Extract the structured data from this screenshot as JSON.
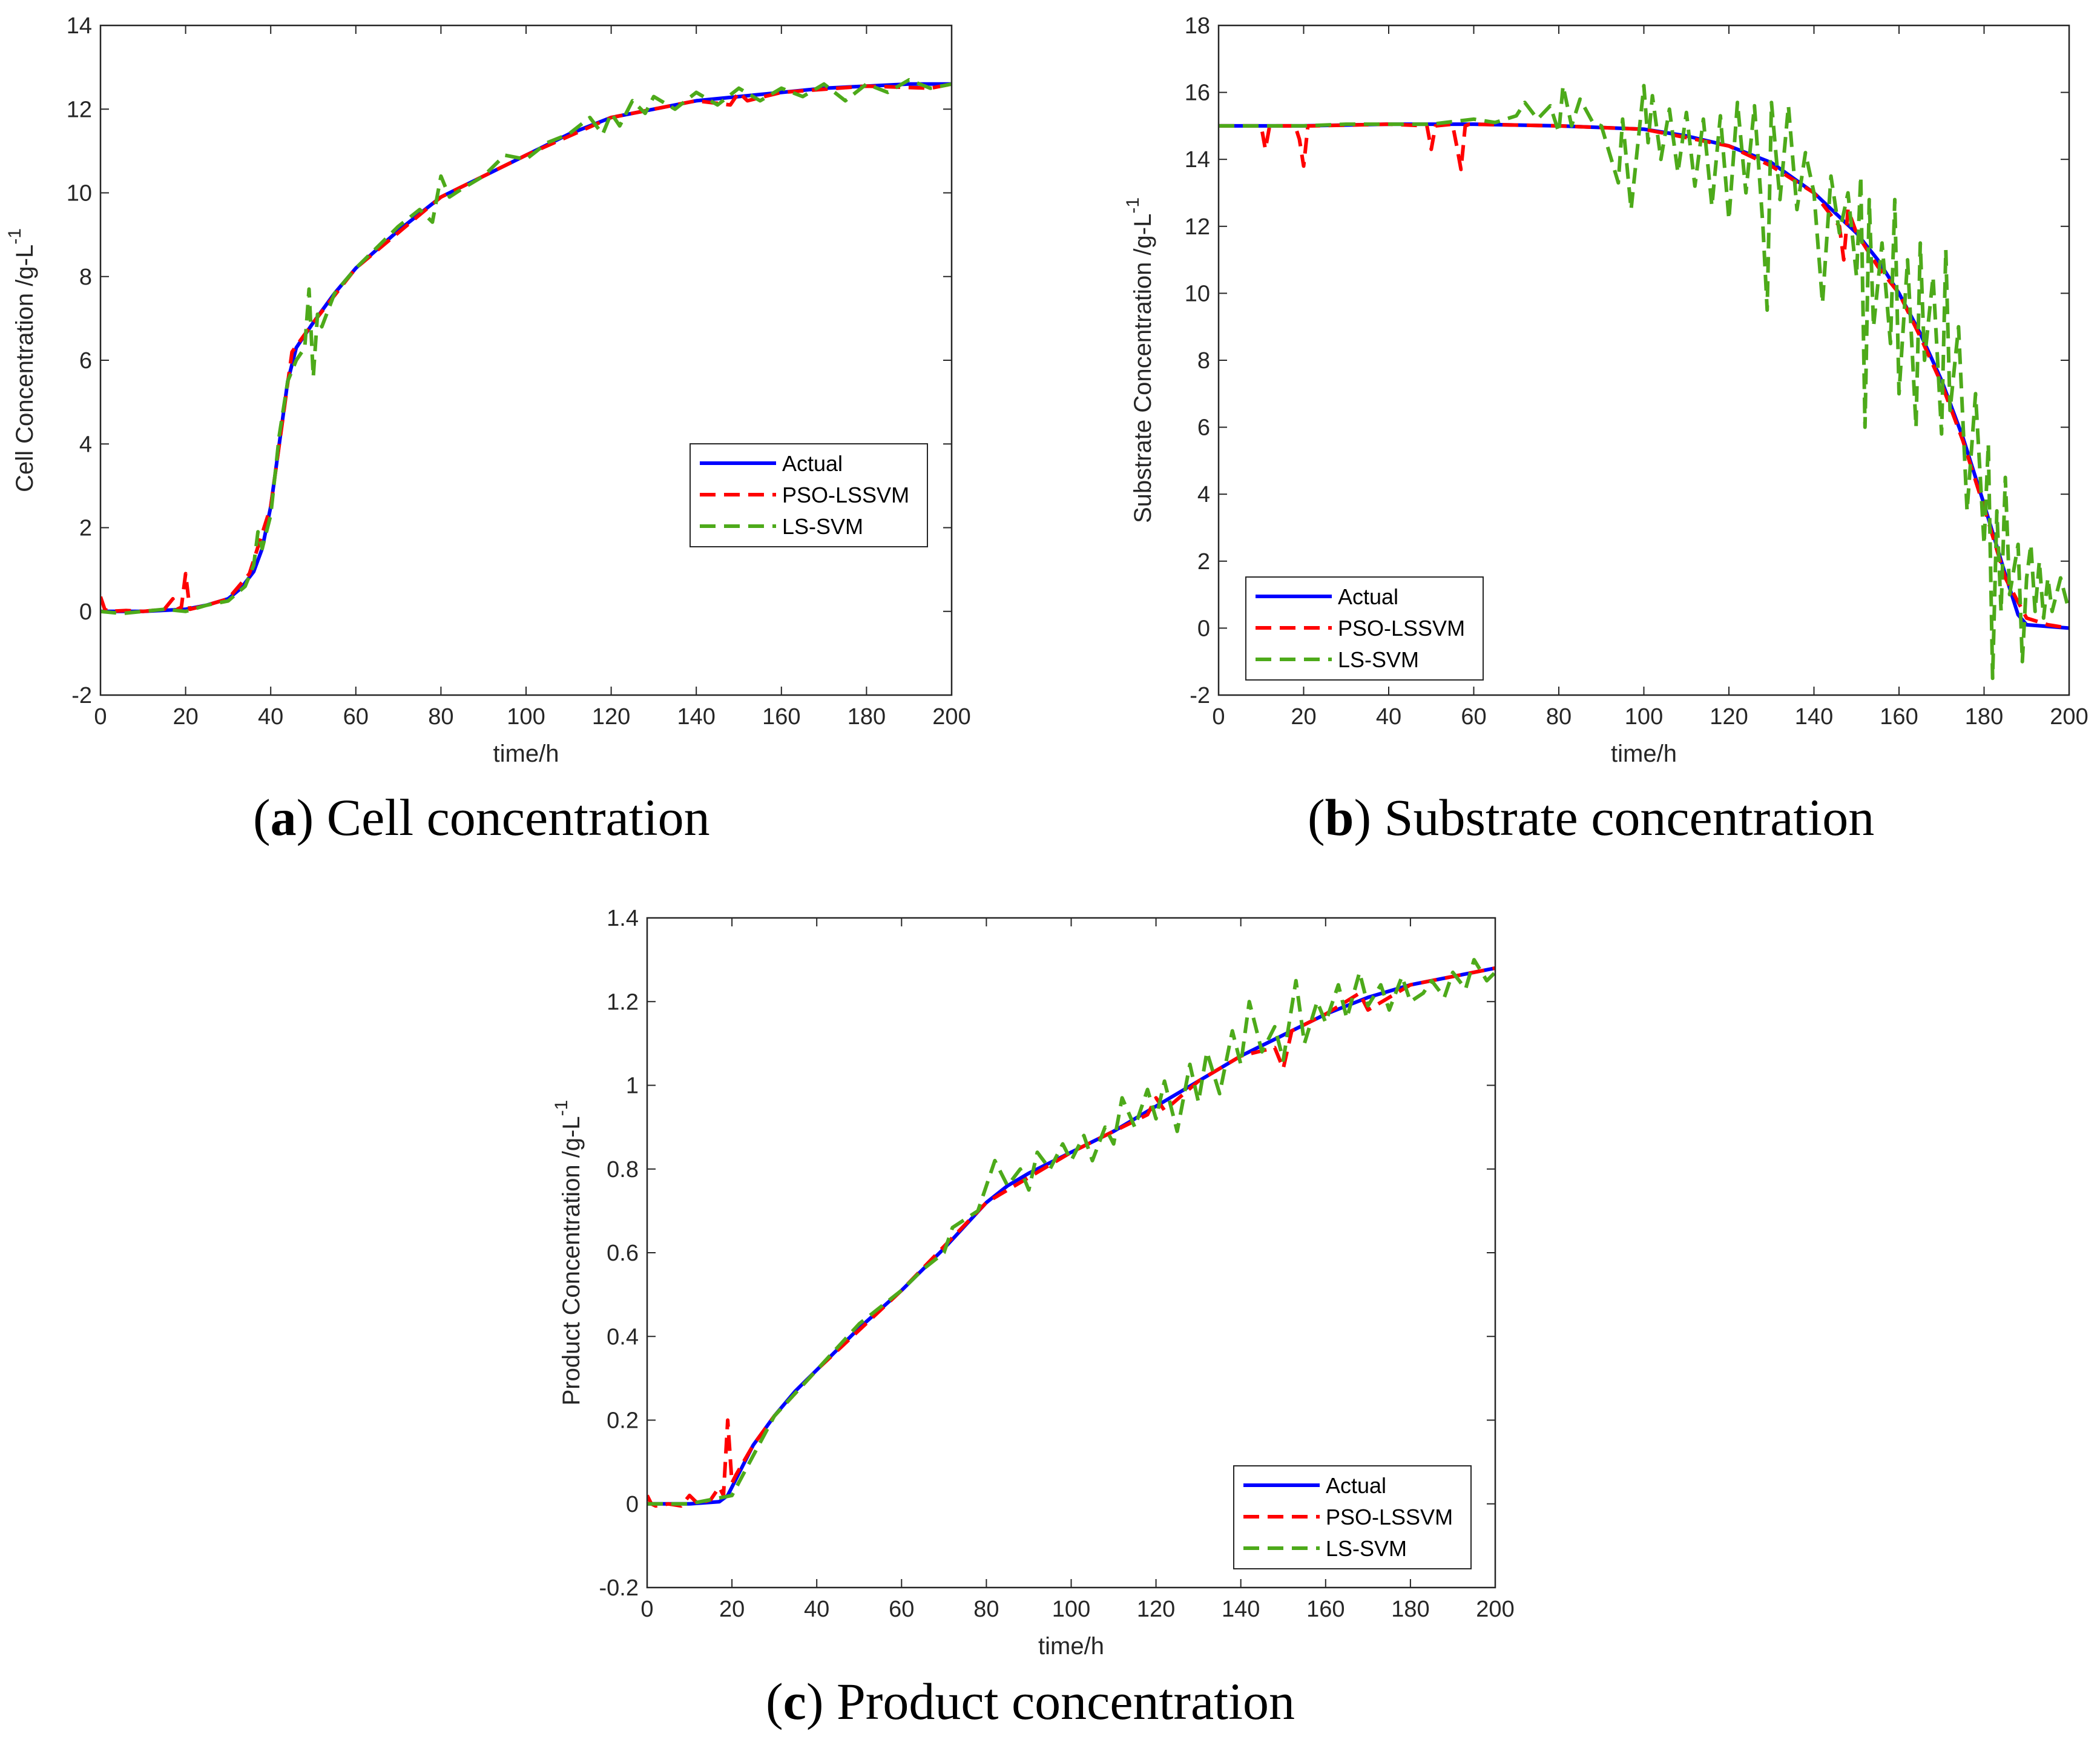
{
  "captions": [
    {
      "letter": "a",
      "text": "Cell concentration"
    },
    {
      "letter": "b",
      "text": "Substrate concentration"
    },
    {
      "letter": "c",
      "text": "Product concentration"
    }
  ],
  "colors": {
    "actual": "#0000ff",
    "pso": "#ff0000",
    "lssvm": "#4daa1a"
  },
  "chart_data": [
    {
      "type": "line",
      "xlabel": "time/h",
      "ylabel": "Cell Concentration /g-L",
      "ylabel_sup": "-1",
      "xlim": [
        0,
        200
      ],
      "ylim": [
        -2,
        14
      ],
      "xticks": [
        0,
        20,
        40,
        60,
        80,
        100,
        120,
        140,
        160,
        180,
        200
      ],
      "yticks": [
        -2,
        0,
        2,
        4,
        6,
        8,
        10,
        12,
        14
      ],
      "legend_position": "lower-right",
      "series": [
        {
          "name": "Actual",
          "x": [
            0,
            10,
            20,
            25,
            30,
            33,
            36,
            38,
            40,
            42,
            44,
            46,
            48,
            50,
            55,
            60,
            70,
            80,
            90,
            100,
            110,
            120,
            130,
            140,
            150,
            160,
            170,
            180,
            190,
            200
          ],
          "y": [
            0,
            0,
            0.05,
            0.15,
            0.3,
            0.55,
            0.95,
            1.5,
            2.5,
            4.0,
            5.5,
            6.3,
            6.6,
            6.9,
            7.6,
            8.2,
            9.1,
            9.9,
            10.4,
            10.9,
            11.4,
            11.8,
            12.0,
            12.2,
            12.3,
            12.4,
            12.5,
            12.55,
            12.6,
            12.6
          ]
        },
        {
          "name": "PSO-LSSVM",
          "x": [
            0,
            1,
            2,
            6,
            10,
            15,
            17,
            18,
            19,
            20,
            21,
            25,
            30,
            35,
            40,
            45,
            50,
            60,
            80,
            100,
            120,
            140,
            148,
            150,
            152,
            160,
            180,
            195,
            200
          ],
          "y": [
            0.35,
            0.05,
            0,
            0.02,
            0,
            0.05,
            0.3,
            0.05,
            0.1,
            0.9,
            0.05,
            0.15,
            0.3,
            0.9,
            2.5,
            6.2,
            6.9,
            8.2,
            9.9,
            10.9,
            11.8,
            12.2,
            12.1,
            12.4,
            12.2,
            12.4,
            12.55,
            12.5,
            12.6
          ]
        },
        {
          "name": "LS-SVM",
          "x": [
            0,
            5,
            10,
            15,
            20,
            25,
            30,
            34,
            36,
            37,
            38,
            40,
            42,
            44,
            46,
            48,
            49,
            50,
            51,
            52,
            55,
            60,
            65,
            70,
            75,
            78,
            80,
            82,
            85,
            90,
            95,
            100,
            105,
            110,
            115,
            118,
            120,
            122,
            125,
            128,
            130,
            135,
            140,
            145,
            150,
            155,
            160,
            165,
            170,
            175,
            180,
            185,
            190,
            195,
            200
          ],
          "y": [
            0,
            -0.05,
            0,
            0.05,
            0,
            0.15,
            0.25,
            0.6,
            1.1,
            1.9,
            1.5,
            2.3,
            4.2,
            5.5,
            6.0,
            6.3,
            7.7,
            5.6,
            7.1,
            6.8,
            7.6,
            8.2,
            8.7,
            9.2,
            9.6,
            9.3,
            10.4,
            9.9,
            10.1,
            10.4,
            10.9,
            10.8,
            11.2,
            11.4,
            11.8,
            11.4,
            11.9,
            11.6,
            12.2,
            11.9,
            12.3,
            12.0,
            12.4,
            12.1,
            12.5,
            12.2,
            12.5,
            12.3,
            12.6,
            12.2,
            12.6,
            12.4,
            12.7,
            12.5,
            12.6
          ]
        }
      ]
    },
    {
      "type": "line",
      "xlabel": "time/h",
      "ylabel": "Substrate Concentration /g-L",
      "ylabel_sup": "-1",
      "xlim": [
        0,
        200
      ],
      "ylim": [
        -2,
        18
      ],
      "xticks": [
        0,
        20,
        40,
        60,
        80,
        100,
        120,
        140,
        160,
        180,
        200
      ],
      "yticks": [
        -2,
        0,
        2,
        4,
        6,
        8,
        10,
        12,
        14,
        16,
        18
      ],
      "legend_position": "lower-left",
      "series": [
        {
          "name": "Actual",
          "x": [
            0,
            20,
            40,
            60,
            80,
            100,
            110,
            120,
            130,
            140,
            150,
            155,
            160,
            165,
            170,
            175,
            180,
            185,
            188,
            190,
            195,
            200
          ],
          "y": [
            15.0,
            15.0,
            15.05,
            15.05,
            15.0,
            14.9,
            14.7,
            14.4,
            13.9,
            13.0,
            11.8,
            11.0,
            10.0,
            8.8,
            7.4,
            5.7,
            3.7,
            1.6,
            0.4,
            0.1,
            0.05,
            0.0
          ]
        },
        {
          "name": "PSO-LSSVM",
          "x": [
            0,
            10,
            11,
            12,
            13,
            18,
            19,
            20,
            21,
            22,
            40,
            49,
            50,
            51,
            55,
            56,
            57,
            58,
            59,
            80,
            100,
            120,
            130,
            140,
            146,
            147,
            148,
            150,
            155,
            160,
            165,
            170,
            175,
            180,
            185,
            190,
            195,
            200
          ],
          "y": [
            15.0,
            15.0,
            14.3,
            15.0,
            15.0,
            15.0,
            14.6,
            13.8,
            15.0,
            15.0,
            15.05,
            15.0,
            14.3,
            15.0,
            15.05,
            14.4,
            13.7,
            15.0,
            15.05,
            15.0,
            14.9,
            14.4,
            13.8,
            13.0,
            12.0,
            11.0,
            12.5,
            11.8,
            10.8,
            10.0,
            8.7,
            7.3,
            5.6,
            3.6,
            1.5,
            0.3,
            0.1,
            0.0
          ]
        },
        {
          "name": "LS-SVM",
          "x": [
            0,
            10,
            20,
            30,
            40,
            50,
            60,
            65,
            70,
            72,
            75,
            78,
            80,
            81,
            83,
            85,
            88,
            90,
            94,
            95,
            97,
            100,
            101,
            102,
            104,
            106,
            108,
            110,
            112,
            114,
            116,
            118,
            120,
            122,
            124,
            126,
            128,
            129,
            130,
            132,
            134,
            136,
            138,
            140,
            142,
            144,
            146,
            148,
            150,
            151,
            152,
            153,
            154,
            156,
            158,
            159,
            160,
            162,
            164,
            165,
            166,
            168,
            170,
            171,
            172,
            174,
            176,
            178,
            180,
            181,
            182,
            183,
            184,
            185,
            186,
            188,
            189,
            190,
            191,
            192,
            193,
            194,
            195,
            196,
            198,
            200
          ],
          "y": [
            15.0,
            15.0,
            15.0,
            15.05,
            15.05,
            15.05,
            15.2,
            15.1,
            15.3,
            15.7,
            15.2,
            15.6,
            14.8,
            16.2,
            15.0,
            15.8,
            15.1,
            15.0,
            13.3,
            15.2,
            12.5,
            16.2,
            14.5,
            15.9,
            14.0,
            15.5,
            13.6,
            15.4,
            13.2,
            15.2,
            12.6,
            15.3,
            12.2,
            15.7,
            13.0,
            15.6,
            12.0,
            9.5,
            15.7,
            12.8,
            15.6,
            12.5,
            14.2,
            13.0,
            9.7,
            13.5,
            11.8,
            13.0,
            10.5,
            13.5,
            6.0,
            12.8,
            9.0,
            11.5,
            8.5,
            12.8,
            7.0,
            11.0,
            6.0,
            11.5,
            8.0,
            10.5,
            5.8,
            11.3,
            6.5,
            9.0,
            3.5,
            7.0,
            2.5,
            5.5,
            -1.5,
            3.5,
            0.5,
            4.5,
            1.0,
            2.5,
            -1.0,
            1.5,
            2.5,
            0.5,
            2.0,
            0.3,
            1.5,
            0.5,
            1.5,
            0.5
          ]
        }
      ]
    },
    {
      "type": "line",
      "xlabel": "time/h",
      "ylabel": "Product Concentration /g-L",
      "ylabel_sup": "-1",
      "xlim": [
        0,
        200
      ],
      "ylim": [
        -0.2,
        1.4
      ],
      "xticks": [
        0,
        20,
        40,
        60,
        80,
        100,
        120,
        140,
        160,
        180,
        200
      ],
      "yticks": [
        -0.2,
        0,
        0.2,
        0.4,
        0.6,
        0.8,
        1,
        1.2,
        1.4
      ],
      "legend_position": "lower-right",
      "series": [
        {
          "name": "Actual",
          "x": [
            0,
            10,
            17,
            19,
            21,
            25,
            30,
            35,
            40,
            50,
            60,
            70,
            80,
            85,
            90,
            100,
            110,
            120,
            130,
            140,
            150,
            160,
            170,
            180,
            190,
            200
          ],
          "y": [
            0,
            0,
            0.005,
            0.02,
            0.06,
            0.14,
            0.21,
            0.27,
            0.32,
            0.42,
            0.51,
            0.61,
            0.72,
            0.76,
            0.79,
            0.84,
            0.89,
            0.95,
            1.01,
            1.07,
            1.12,
            1.17,
            1.21,
            1.24,
            1.26,
            1.28
          ]
        },
        {
          "name": "PSO-LSSVM",
          "x": [
            0,
            1,
            2,
            5,
            8,
            10,
            12,
            15,
            17,
            18,
            19,
            20,
            21,
            25,
            30,
            40,
            60,
            80,
            100,
            118,
            120,
            122,
            130,
            140,
            148,
            150,
            152,
            160,
            168,
            170,
            180,
            190,
            200
          ],
          "y": [
            0.02,
            0.0,
            -0.005,
            0.0,
            -0.005,
            0.02,
            0.0,
            0.01,
            0.04,
            0.02,
            0.2,
            0.05,
            0.07,
            0.14,
            0.21,
            0.32,
            0.51,
            0.72,
            0.84,
            0.93,
            0.97,
            0.94,
            1.01,
            1.07,
            1.09,
            1.04,
            1.13,
            1.17,
            1.22,
            1.18,
            1.24,
            1.26,
            1.28
          ]
        },
        {
          "name": "LS-SVM",
          "x": [
            0,
            10,
            20,
            30,
            40,
            50,
            60,
            65,
            70,
            72,
            75,
            78,
            80,
            82,
            85,
            88,
            90,
            92,
            95,
            98,
            100,
            103,
            105,
            108,
            110,
            112,
            115,
            118,
            120,
            122,
            125,
            128,
            130,
            132,
            135,
            138,
            140,
            142,
            145,
            148,
            150,
            153,
            155,
            158,
            160,
            163,
            165,
            168,
            170,
            173,
            175,
            178,
            180,
            183,
            185,
            188,
            190,
            193,
            195,
            198,
            200
          ],
          "y": [
            0,
            0,
            0.02,
            0.21,
            0.32,
            0.43,
            0.51,
            0.56,
            0.6,
            0.66,
            0.68,
            0.7,
            0.76,
            0.82,
            0.76,
            0.8,
            0.75,
            0.84,
            0.8,
            0.86,
            0.82,
            0.88,
            0.82,
            0.9,
            0.86,
            0.97,
            0.9,
            0.99,
            0.92,
            1.01,
            0.89,
            1.05,
            0.96,
            1.08,
            0.98,
            1.13,
            1.05,
            1.2,
            1.08,
            1.14,
            1.06,
            1.25,
            1.1,
            1.2,
            1.15,
            1.24,
            1.16,
            1.27,
            1.19,
            1.24,
            1.18,
            1.26,
            1.2,
            1.22,
            1.25,
            1.21,
            1.27,
            1.23,
            1.3,
            1.25,
            1.27
          ]
        }
      ]
    }
  ]
}
